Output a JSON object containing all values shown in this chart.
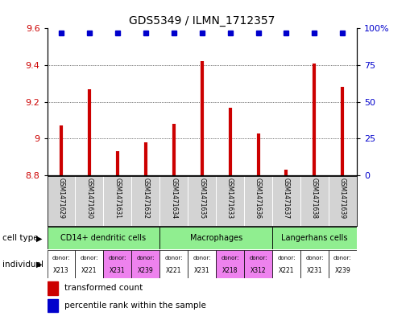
{
  "title": "GDS5349 / ILMN_1712357",
  "samples": [
    "GSM1471629",
    "GSM1471630",
    "GSM1471631",
    "GSM1471632",
    "GSM1471634",
    "GSM1471635",
    "GSM1471633",
    "GSM1471636",
    "GSM1471637",
    "GSM1471638",
    "GSM1471639"
  ],
  "bar_values": [
    9.07,
    9.27,
    8.93,
    8.98,
    9.08,
    9.42,
    9.17,
    9.03,
    8.83,
    9.41,
    9.28
  ],
  "percentile_values": [
    97,
    97,
    97,
    97,
    97,
    97,
    97,
    97,
    97,
    97,
    97
  ],
  "ylim_left": [
    8.8,
    9.6
  ],
  "ylim_right": [
    0,
    100
  ],
  "yticks_left": [
    8.8,
    9.0,
    9.2,
    9.4,
    9.6
  ],
  "yticks_left_labels": [
    "8.8",
    "9",
    "9.2",
    "9.4",
    "9.6"
  ],
  "yticks_right": [
    0,
    25,
    50,
    75,
    100
  ],
  "yticks_right_labels": [
    "0",
    "25",
    "50",
    "75",
    "100%"
  ],
  "cell_types": [
    {
      "label": "CD14+ dendritic cells",
      "start": 0,
      "end": 4,
      "color": "#90ee90"
    },
    {
      "label": "Macrophages",
      "start": 4,
      "end": 8,
      "color": "#90ee90"
    },
    {
      "label": "Langerhans cells",
      "start": 8,
      "end": 11,
      "color": "#90ee90"
    }
  ],
  "individuals": [
    {
      "donor": "X213",
      "col": 0,
      "color": "#ffffff"
    },
    {
      "donor": "X221",
      "col": 1,
      "color": "#ffffff"
    },
    {
      "donor": "X231",
      "col": 2,
      "color": "#ee82ee"
    },
    {
      "donor": "X239",
      "col": 3,
      "color": "#ee82ee"
    },
    {
      "donor": "X221",
      "col": 4,
      "color": "#ffffff"
    },
    {
      "donor": "X231",
      "col": 5,
      "color": "#ffffff"
    },
    {
      "donor": "X218",
      "col": 6,
      "color": "#ee82ee"
    },
    {
      "donor": "X312",
      "col": 7,
      "color": "#ee82ee"
    },
    {
      "donor": "X221",
      "col": 8,
      "color": "#ffffff"
    },
    {
      "donor": "X231",
      "col": 9,
      "color": "#ffffff"
    },
    {
      "donor": "X239",
      "col": 10,
      "color": "#ffffff"
    }
  ],
  "bar_color": "#cc0000",
  "dot_color": "#0000cc",
  "baseline": 8.8,
  "bg_color": "#ffffff",
  "tick_label_color_left": "#cc0000",
  "tick_label_color_right": "#0000cc",
  "sample_bg_color": "#d3d3d3",
  "label_celltype": "cell type",
  "label_individual": "individual",
  "legend_red": "transformed count",
  "legend_blue": "percentile rank within the sample"
}
